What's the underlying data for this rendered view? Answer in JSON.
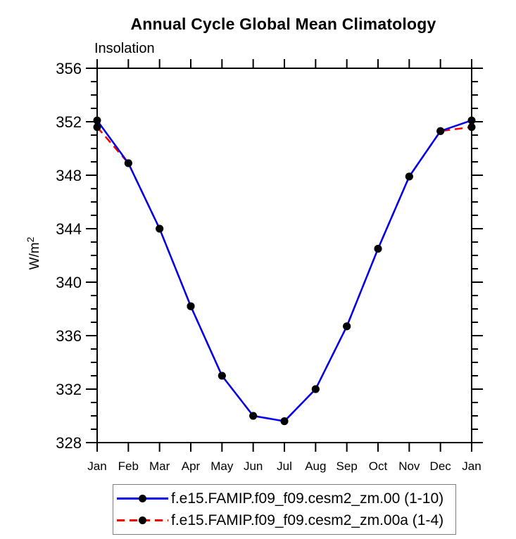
{
  "chart_data": {
    "type": "line",
    "title": "Annual Cycle Global Mean Climatology",
    "subtitle": "Insolation",
    "ylabel": "W/m²",
    "xlabel": "",
    "categories": [
      "Jan",
      "Feb",
      "Mar",
      "Apr",
      "May",
      "Jun",
      "Jul",
      "Aug",
      "Sep",
      "Oct",
      "Nov",
      "Dec",
      "Jan"
    ],
    "ylim": [
      328,
      356
    ],
    "ytick_major": 4,
    "ytick_minor": 1,
    "ytick_labels": [
      328,
      332,
      336,
      340,
      344,
      348,
      352,
      356
    ],
    "grid": false,
    "axis_color": "#000000",
    "legend": {
      "position": "bottom-center",
      "boxed": true,
      "border_color": "#7d7d7d"
    },
    "series": [
      {
        "name": "f.e15.FAMIP.f09_f09.cesm2_zm.00 (1-10)",
        "color": "#0000ee",
        "line_style": "solid",
        "marker": "circle",
        "marker_color": "#000000",
        "values": [
          352.1,
          348.9,
          344.0,
          338.2,
          333.0,
          330.0,
          329.6,
          332.0,
          336.7,
          342.5,
          347.9,
          351.3,
          352.1
        ]
      },
      {
        "name": "f.e15.FAMIP.f09_f09.cesm2_zm.00a (1-4)",
        "color": "#ff0000",
        "line_style": "dashed",
        "marker": "circle",
        "marker_color": "#000000",
        "values": [
          351.6,
          348.9,
          344.0,
          338.2,
          333.0,
          330.0,
          329.6,
          332.0,
          336.7,
          342.5,
          347.9,
          351.3,
          351.6
        ]
      }
    ]
  }
}
